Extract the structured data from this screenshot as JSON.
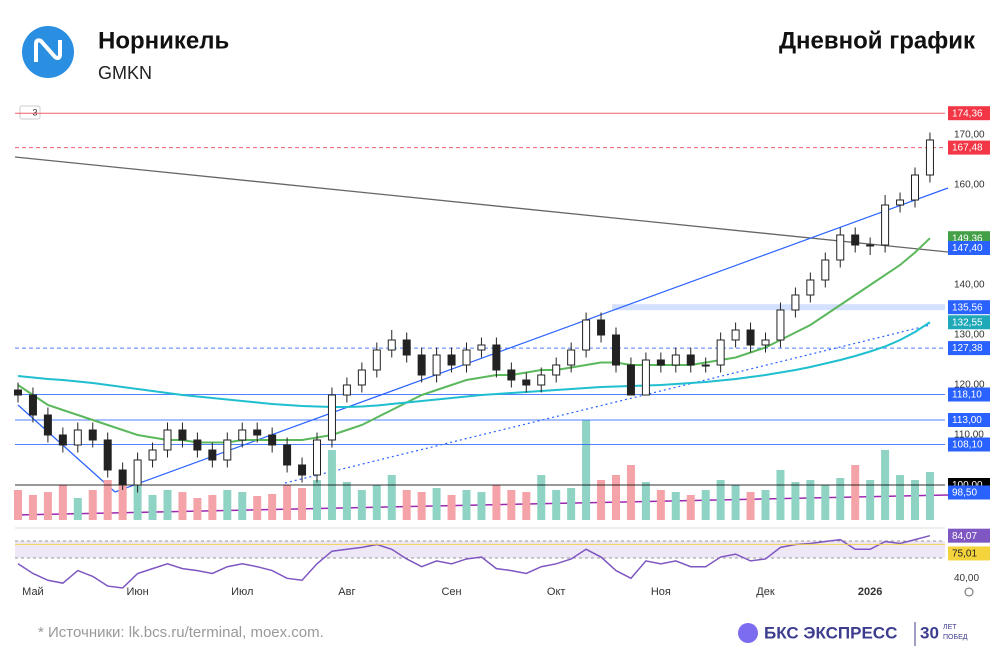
{
  "header": {
    "title": "Норникель",
    "ticker": "GMKN",
    "chart_kind": "Дневной график"
  },
  "indicator_badge": "3",
  "chart_data": {
    "type": "candlestick",
    "categories": [
      null,
      "Май",
      null,
      null,
      null,
      null,
      null,
      null,
      "Июн",
      null,
      null,
      null,
      null,
      null,
      null,
      "Июл",
      null,
      null,
      null,
      null,
      null,
      null,
      "Авг",
      null,
      null,
      null,
      null,
      null,
      null,
      "Сен",
      null,
      null,
      null,
      null,
      null,
      null,
      "Окт",
      null,
      null,
      null,
      null,
      null,
      null,
      "Ноя",
      null,
      null,
      null,
      null,
      null,
      null,
      "Дек",
      null,
      null,
      null,
      null,
      null,
      null,
      "2026",
      null,
      null,
      null,
      null
    ],
    "open": [
      119,
      118,
      114,
      110,
      108,
      111,
      109,
      103,
      100,
      105,
      107,
      111,
      109,
      107,
      105,
      109,
      111,
      110,
      108,
      104,
      102,
      109,
      118,
      120,
      123,
      127,
      129,
      126,
      122,
      126,
      124,
      127,
      128,
      123,
      121,
      120,
      122,
      124,
      127,
      133,
      130,
      124,
      118,
      125,
      124,
      126,
      124,
      124,
      129,
      131,
      128,
      129,
      135,
      138,
      141,
      145,
      150,
      148,
      148,
      156,
      157,
      162
    ],
    "high": [
      120.5,
      119.5,
      115.5,
      111.5,
      112.5,
      112.5,
      110.5,
      104.5,
      106.5,
      108.5,
      112.5,
      112.5,
      110.5,
      108.5,
      110.5,
      112.5,
      112.5,
      111.5,
      109.5,
      105.5,
      110.5,
      119.5,
      121.5,
      124.5,
      128.5,
      131,
      130.5,
      127.5,
      127.5,
      127.5,
      128.5,
      129.5,
      129.5,
      124.5,
      122.5,
      123.5,
      125.5,
      128.5,
      134.5,
      134.5,
      131.5,
      125.5,
      126.5,
      126.5,
      127.5,
      127.5,
      125.5,
      130.5,
      132.5,
      132.5,
      130.5,
      136.5,
      139.5,
      142.5,
      146.5,
      151.5,
      151.5,
      149.5,
      158,
      158.5,
      163.5,
      170.5
    ],
    "low": [
      116.5,
      112.5,
      108.5,
      106.5,
      106.5,
      107.5,
      101.5,
      99,
      98.5,
      103.5,
      105.5,
      107.5,
      105.5,
      103.5,
      103.5,
      107.5,
      108.5,
      106.5,
      102.5,
      100.5,
      100.5,
      107.5,
      116.5,
      118.5,
      121.5,
      125.5,
      124.5,
      120.5,
      120.5,
      122.5,
      122.5,
      125.5,
      121.5,
      119.5,
      118.5,
      118.5,
      120.5,
      122.5,
      125.5,
      128.5,
      122.5,
      118,
      118,
      122.5,
      122.5,
      122.5,
      122.5,
      122.5,
      127.5,
      126.5,
      126.5,
      127.5,
      133.5,
      136.5,
      139.5,
      143.5,
      146.5,
      146,
      146.5,
      154.5,
      155.5,
      160.5
    ],
    "close": [
      118,
      114,
      110,
      108,
      111,
      109,
      103,
      100,
      105,
      107,
      111,
      109,
      107,
      105,
      109,
      111,
      110,
      108,
      104,
      102,
      109,
      118,
      120,
      123,
      127,
      129,
      126,
      122,
      126,
      124,
      127,
      128,
      123,
      121,
      120,
      122,
      124,
      127,
      133,
      130,
      124,
      118,
      125,
      124,
      126,
      124,
      124,
      129,
      131,
      128,
      129,
      135,
      138,
      141,
      145,
      150,
      148,
      148,
      156,
      157,
      162,
      169
    ],
    "up_color": "#222222",
    "down_color": "#222222",
    "series": [
      {
        "color": "#5cb85c",
        "values": [
          120,
          118,
          116,
          115,
          114,
          113,
          112,
          111,
          110,
          109.5,
          109,
          109,
          108.5,
          108.5,
          108.5,
          109,
          109,
          109,
          109,
          109,
          109.5,
          110,
          111,
          112,
          113.5,
          115,
          116.5,
          118,
          119,
          120,
          121,
          121.5,
          122,
          122,
          122.5,
          123,
          123,
          123.5,
          124,
          124.5,
          124.5,
          124,
          124,
          124,
          124,
          124,
          124.5,
          125,
          125.5,
          126.5,
          127.5,
          129,
          130.5,
          132,
          134,
          136,
          138,
          140,
          142,
          144,
          146.5,
          149.36
        ]
      },
      {
        "color": "#1fbfd0",
        "values": [
          121.8,
          121.5,
          121.2,
          121,
          120.7,
          120.4,
          120,
          119.6,
          119.2,
          118.8,
          118.4,
          118,
          117.7,
          117.4,
          117.1,
          116.8,
          116.5,
          116.2,
          116,
          115.8,
          115.7,
          115.6,
          115.6,
          115.7,
          115.9,
          116.2,
          116.5,
          116.8,
          117.1,
          117.4,
          117.7,
          118,
          118.2,
          118.4,
          118.6,
          118.8,
          119,
          119.2,
          119.4,
          119.6,
          119.7,
          119.8,
          119.9,
          120,
          120.2,
          120.4,
          120.6,
          120.9,
          121.2,
          121.6,
          122,
          122.5,
          123,
          123.6,
          124.3,
          125,
          125.8,
          126.7,
          127.7,
          129,
          130.6,
          132.55
        ]
      }
    ],
    "volume": [
      30,
      25,
      28,
      35,
      22,
      30,
      40,
      38,
      35,
      25,
      30,
      28,
      22,
      25,
      30,
      28,
      24,
      26,
      35,
      32,
      40,
      70,
      38,
      30,
      35,
      45,
      30,
      28,
      32,
      25,
      30,
      28,
      35,
      30,
      28,
      45,
      30,
      32,
      100,
      40,
      45,
      55,
      38,
      30,
      28,
      25,
      30,
      40,
      35,
      28,
      30,
      50,
      38,
      40,
      35,
      42,
      55,
      40,
      70,
      45,
      40,
      48
    ],
    "volume_up_color": "#8fd3c4",
    "volume_down_color": "#f4a3a8",
    "ylim": [
      92,
      177
    ],
    "yticks": [
      {
        "value": 170,
        "label": "170,00"
      },
      {
        "value": 160,
        "label": "160,00"
      },
      {
        "value": 140,
        "label": "140,00"
      },
      {
        "value": 130,
        "label": "130,00"
      },
      {
        "value": 120,
        "label": "120,00"
      },
      {
        "value": 110,
        "label": "110,00"
      }
    ],
    "levels": [
      {
        "value": 174.36,
        "label": "174,36",
        "color": "#f23645",
        "line": "solid"
      },
      {
        "value": 167.48,
        "label": "167,48",
        "color": "#f23645",
        "line": "dashed"
      },
      {
        "value": 149.36,
        "label": "149,36",
        "color": "#43a047",
        "line": "none"
      },
      {
        "value": 147.4,
        "label": "147,40",
        "color": "#2962ff",
        "line": "none"
      },
      {
        "value": 135.56,
        "label": "135,56",
        "color": "#2962ff",
        "line": "band"
      },
      {
        "value": 132.55,
        "label": "132,55",
        "color": "#1fa9b8",
        "line": "none"
      },
      {
        "value": 127.38,
        "label": "127,38",
        "color": "#2962ff",
        "line": "dashed"
      },
      {
        "value": 118.1,
        "label": "118,10",
        "color": "#2962ff",
        "line": "solid"
      },
      {
        "value": 113,
        "label": "113,00",
        "color": "#2962ff",
        "line": "solid"
      },
      {
        "value": 108.1,
        "label": "108,10",
        "color": "#2962ff",
        "line": "solid"
      },
      {
        "value": 100,
        "label": "100,00",
        "color": "#000000",
        "line": "solid"
      },
      {
        "value": 98.5,
        "label": "98,50",
        "color": "#2962ff",
        "line": "none"
      }
    ],
    "rsi": {
      "color": "#7e57c2",
      "values": [
        55,
        45,
        38,
        35,
        48,
        42,
        32,
        30,
        45,
        50,
        55,
        50,
        48,
        45,
        52,
        55,
        52,
        48,
        40,
        38,
        55,
        68,
        70,
        72,
        75,
        70,
        60,
        52,
        58,
        55,
        60,
        62,
        50,
        48,
        45,
        52,
        55,
        60,
        70,
        62,
        48,
        40,
        58,
        55,
        58,
        52,
        52,
        62,
        65,
        58,
        60,
        72,
        75,
        76,
        78,
        80,
        70,
        70,
        78,
        76,
        80,
        84.07
      ],
      "ma_color": "#f5d33c",
      "ma_value": 75.01,
      "ma_label": "75,01",
      "value_label": "84,07",
      "ylim": [
        30,
        92
      ],
      "yticks": [
        {
          "value": 40,
          "label": "40,00"
        }
      ]
    }
  },
  "footer": {
    "source": "*  Источники: lk.bcs.ru/terminal, moex.com.",
    "brand": "БКС ЭКСПРЕСС",
    "badge_top": "ЛЕТ",
    "badge_bottom": "ПОБЕД",
    "badge_number": "30"
  }
}
